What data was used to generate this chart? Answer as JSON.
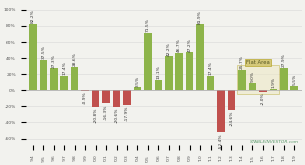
{
  "years": [
    "'94",
    "'95",
    "'96",
    "'97",
    "'98",
    "'99",
    "'00",
    "'01",
    "'02",
    "'03",
    "'04",
    "'05",
    "'06",
    "'07",
    "'08",
    "'09",
    "'10",
    "'11",
    "'12",
    "'13",
    "'14",
    "'15",
    "'16",
    "'17",
    "'18",
    "'19"
  ],
  "values": [
    82.2,
    37.5,
    27.3,
    17.4,
    28.6,
    -0.9,
    -20.8,
    -16.3,
    -20.6,
    -17.9,
    3.5,
    71.5,
    13.1,
    42.2,
    46.7,
    47.2,
    81.9,
    17.4,
    -52.4,
    -24.6,
    25.7,
    9.0,
    -2.0,
    1.9,
    27.9,
    5.5
  ],
  "green_color": "#8db44a",
  "red_color": "#c0504d",
  "bg_color": "#f2f2ee",
  "grid_color": "#d8d8d8",
  "watermark": "STABLEINVESTOR.com",
  "highlight_box_color": "#d4c87a",
  "highlight_box_text": "Flat Area",
  "flat_area_indices": [
    20,
    21,
    22,
    23
  ],
  "yticks": [
    -60,
    -40,
    -20,
    0,
    20,
    40,
    60,
    80,
    100
  ],
  "ylim": [
    -68,
    108
  ]
}
